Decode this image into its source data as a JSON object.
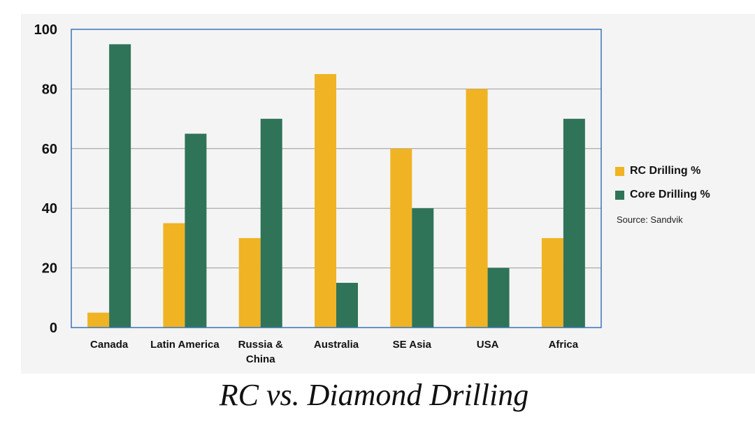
{
  "chart_data": {
    "type": "bar",
    "title": "",
    "xlabel": "",
    "ylabel": "",
    "ylim": [
      0,
      100
    ],
    "yticks": [
      0,
      20,
      40,
      60,
      80,
      100
    ],
    "grid": true,
    "legend_position": "right",
    "categories": [
      "Canada",
      "Latin America",
      "Russia & China",
      "Australia",
      "SE Asia",
      "USA",
      "Africa"
    ],
    "category_labels": [
      [
        "Canada"
      ],
      [
        "Latin America"
      ],
      [
        "Russia &",
        "China"
      ],
      [
        "Australia"
      ],
      [
        "SE Asia"
      ],
      [
        "USA"
      ],
      [
        "Africa"
      ]
    ],
    "series": [
      {
        "name": "RC Drilling %",
        "color": "#f0b323",
        "values": [
          5,
          35,
          30,
          85,
          60,
          80,
          30
        ]
      },
      {
        "name": "Core Drilling %",
        "color": "#2f7458",
        "values": [
          95,
          65,
          70,
          15,
          40,
          20,
          70
        ]
      }
    ]
  },
  "legend": {
    "items": [
      {
        "label": "RC Drilling %",
        "color": "#f0b323"
      },
      {
        "label": "Core Drilling %",
        "color": "#2f7458"
      }
    ],
    "source": "Source: Sandvik"
  },
  "caption": "RC vs. Diamond Drilling"
}
